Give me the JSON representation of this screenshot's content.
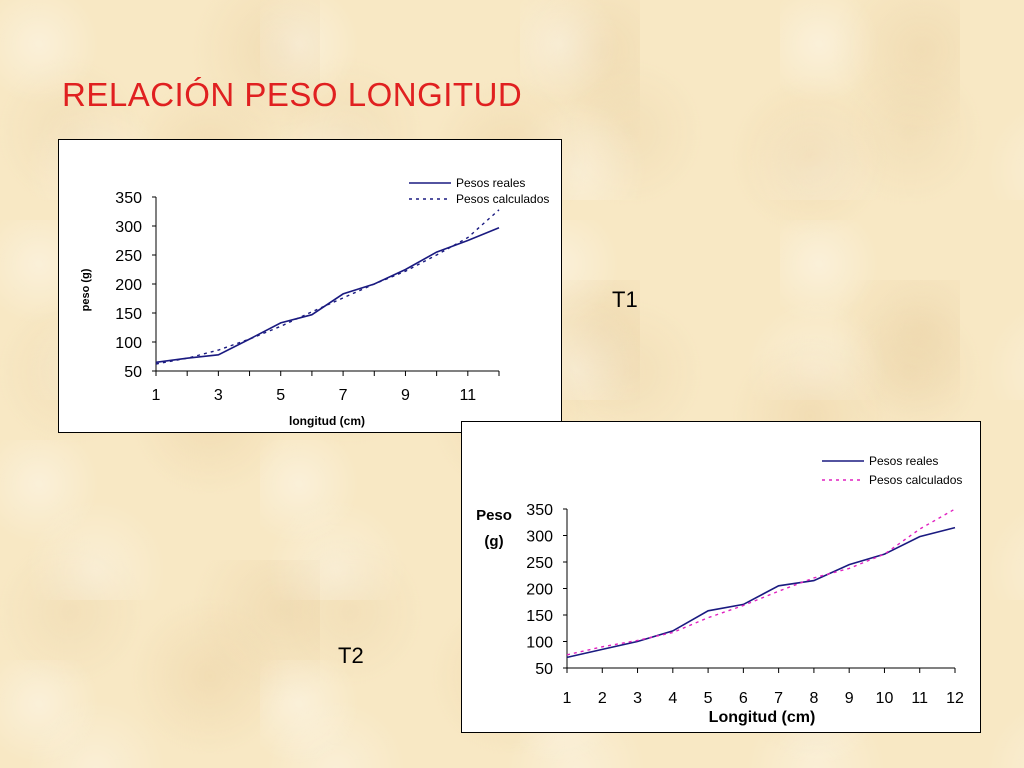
{
  "slide": {
    "title": "RELACIÓN PESO LONGITUD",
    "title_color": "#e02020",
    "label_t1": "T1",
    "label_t2": "T2"
  },
  "chart_data": [
    {
      "type": "line",
      "name": "T1",
      "x": [
        1,
        2,
        3,
        4,
        5,
        6,
        7,
        8,
        9,
        10,
        11,
        12
      ],
      "x_ticks": [
        "1",
        "3",
        "5",
        "7",
        "9",
        "11"
      ],
      "y_ticks": [
        "50",
        "100",
        "150",
        "200",
        "250",
        "300",
        "350"
      ],
      "xlabel": "longitud (cm)",
      "ylabel": "peso (g)",
      "ylim": [
        50,
        350
      ],
      "legend_position": "top-right",
      "series": [
        {
          "name": "Pesos reales",
          "color": "#1a1a80",
          "dash": "solid",
          "values": [
            65,
            72,
            78,
            105,
            133,
            147,
            183,
            200,
            225,
            255,
            275,
            297
          ]
        },
        {
          "name": "Pesos calculados",
          "color": "#1a1a80",
          "dash": "dotted",
          "values": [
            62,
            72,
            86,
            105,
            127,
            152,
            176,
            200,
            222,
            250,
            280,
            328
          ]
        }
      ]
    },
    {
      "type": "line",
      "name": "T2",
      "x": [
        1,
        2,
        3,
        4,
        5,
        6,
        7,
        8,
        9,
        10,
        11,
        12
      ],
      "x_ticks": [
        "1",
        "2",
        "3",
        "4",
        "5",
        "6",
        "7",
        "8",
        "9",
        "10",
        "11",
        "12"
      ],
      "y_ticks": [
        "50",
        "100",
        "150",
        "200",
        "250",
        "300",
        "350"
      ],
      "xlabel": "Longitud (cm)",
      "ylabel_line1": "Peso",
      "ylabel_line2": "(g)",
      "ylim": [
        50,
        350
      ],
      "legend_position": "top-right",
      "series": [
        {
          "name": "Pesos reales",
          "color": "#1a1a80",
          "dash": "solid",
          "values": [
            70,
            85,
            100,
            120,
            158,
            170,
            205,
            215,
            245,
            265,
            298,
            315
          ]
        },
        {
          "name": "Pesos calculados",
          "color": "#e020c0",
          "dash": "dotted",
          "values": [
            75,
            90,
            102,
            117,
            145,
            168,
            195,
            220,
            238,
            265,
            312,
            350
          ]
        }
      ]
    }
  ]
}
